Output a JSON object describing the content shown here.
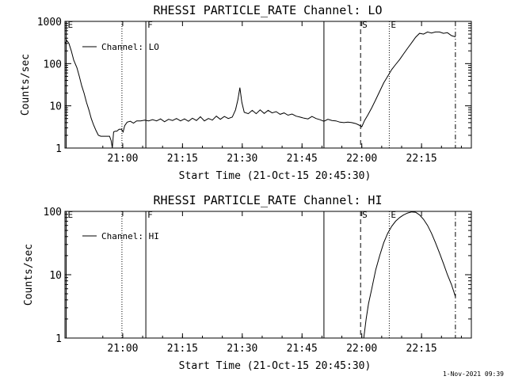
{
  "footer_timestamp": "1-Nov-2021 09:39",
  "chart_data": [
    {
      "type": "line",
      "title": "RHESSI PARTICLE_RATE Channel: LO",
      "xlabel": "Start Time (21-Oct-15 20:45:30)",
      "ylabel": "Counts/sec",
      "yscale": "log",
      "ylim": [
        1,
        1000
      ],
      "xlim_minutes": [
        0,
        102
      ],
      "x_ticks": [
        {
          "t": 14.5,
          "label": "21:00"
        },
        {
          "t": 29.5,
          "label": "21:15"
        },
        {
          "t": 44.5,
          "label": "21:30"
        },
        {
          "t": 59.5,
          "label": "21:45"
        },
        {
          "t": 74.5,
          "label": "22:00"
        },
        {
          "t": 89.5,
          "label": "22:15"
        }
      ],
      "y_ticks": [
        {
          "v": 1,
          "label": "1"
        },
        {
          "v": 10,
          "label": "10"
        },
        {
          "v": 100,
          "label": "100"
        },
        {
          "v": 1000,
          "label": "1000"
        }
      ],
      "legend": {
        "position": "top-left",
        "label": "Channel: LO"
      },
      "markers": [
        {
          "t": 0.3,
          "style": "solid",
          "label": "E"
        },
        {
          "t": 14.3,
          "style": "dotted",
          "label": ""
        },
        {
          "t": 20.3,
          "style": "solid",
          "label": "F"
        },
        {
          "t": 65.0,
          "style": "solid",
          "label": ""
        },
        {
          "t": 74.2,
          "style": "dashed",
          "label": "S"
        },
        {
          "t": 81.4,
          "style": "dotted",
          "label": "E"
        },
        {
          "t": 98.0,
          "style": "dashdot",
          "label": ""
        }
      ],
      "series": [
        {
          "name": "",
          "points": [
            [
              0,
              300
            ],
            [
              0.5,
              350
            ],
            [
              1,
              300
            ],
            [
              1.6,
              200
            ],
            [
              2.2,
              120
            ],
            [
              3,
              80
            ],
            [
              3.6,
              50
            ],
            [
              4.2,
              30
            ],
            [
              4.8,
              20
            ],
            [
              5.4,
              12
            ],
            [
              6,
              8
            ],
            [
              6.6,
              5
            ],
            [
              7.2,
              3.5
            ],
            [
              7.8,
              2.6
            ],
            [
              8.4,
              2
            ],
            [
              9,
              1.9
            ],
            [
              9.6,
              1.9
            ],
            [
              10.2,
              1.9
            ],
            [
              10.8,
              1.9
            ],
            [
              11.2,
              1.9
            ],
            [
              11.6,
              1.5
            ],
            [
              11.9,
              1.0
            ],
            [
              12.2,
              2.4
            ],
            [
              12.6,
              2.5
            ],
            [
              13,
              2.5
            ],
            [
              13.6,
              2.8
            ],
            [
              14.2,
              2.8
            ],
            [
              14.6,
              2.4
            ],
            [
              15,
              3.4
            ],
            [
              15.6,
              4.1
            ],
            [
              16.4,
              4.3
            ],
            [
              17.2,
              3.9
            ],
            [
              18,
              4.4
            ],
            [
              19,
              4.4
            ],
            [
              20,
              4.6
            ],
            [
              21,
              4.4
            ],
            [
              22,
              4.7
            ],
            [
              23,
              4.4
            ],
            [
              24,
              4.9
            ],
            [
              25,
              4.2
            ],
            [
              26,
              4.8
            ],
            [
              27,
              4.5
            ],
            [
              28,
              5.0
            ],
            [
              29,
              4.4
            ],
            [
              30,
              4.9
            ],
            [
              31,
              4.3
            ],
            [
              32,
              5.1
            ],
            [
              33,
              4.5
            ],
            [
              34,
              5.5
            ],
            [
              35,
              4.4
            ],
            [
              36,
              5.0
            ],
            [
              37,
              4.6
            ],
            [
              38,
              5.7
            ],
            [
              39,
              4.8
            ],
            [
              40,
              5.6
            ],
            [
              41,
              5.0
            ],
            [
              42,
              5.4
            ],
            [
              42.8,
              8
            ],
            [
              43.4,
              14
            ],
            [
              43.9,
              27
            ],
            [
              44.4,
              12
            ],
            [
              45,
              7
            ],
            [
              46,
              6.5
            ],
            [
              47,
              7.8
            ],
            [
              48,
              6.5
            ],
            [
              49,
              8
            ],
            [
              50,
              6.6
            ],
            [
              51,
              7.8
            ],
            [
              52,
              6.8
            ],
            [
              53,
              7.3
            ],
            [
              54,
              6.3
            ],
            [
              55,
              6.8
            ],
            [
              56,
              6.0
            ],
            [
              57,
              6.4
            ],
            [
              58,
              5.7
            ],
            [
              59,
              5.4
            ],
            [
              60,
              5.1
            ],
            [
              61,
              4.9
            ],
            [
              62,
              5.6
            ],
            [
              63,
              5.0
            ],
            [
              64,
              4.7
            ],
            [
              65,
              4.3
            ],
            [
              66,
              4.8
            ],
            [
              67,
              4.5
            ],
            [
              68,
              4.4
            ],
            [
              69,
              4.1
            ],
            [
              70,
              4.0
            ],
            [
              71,
              4.1
            ],
            [
              72,
              4.0
            ],
            [
              73,
              3.8
            ],
            [
              73.8,
              3.5
            ],
            [
              74.5,
              3.2
            ],
            [
              75.2,
              4.5
            ],
            [
              76,
              6
            ],
            [
              77,
              9
            ],
            [
              78,
              14
            ],
            [
              79,
              22
            ],
            [
              80,
              35
            ],
            [
              81,
              50
            ],
            [
              82,
              72
            ],
            [
              83,
              95
            ],
            [
              84,
              125
            ],
            [
              85,
              170
            ],
            [
              86,
              230
            ],
            [
              87,
              310
            ],
            [
              88,
              420
            ],
            [
              89,
              520
            ],
            [
              90,
              500
            ],
            [
              91,
              560
            ],
            [
              92,
              530
            ],
            [
              93,
              560
            ],
            [
              94,
              560
            ],
            [
              95,
              520
            ],
            [
              96,
              540
            ],
            [
              97,
              460
            ],
            [
              98,
              430
            ]
          ]
        }
      ]
    },
    {
      "type": "line",
      "title": "RHESSI PARTICLE_RATE Channel: HI",
      "xlabel": "Start Time (21-Oct-15 20:45:30)",
      "ylabel": "Counts/sec",
      "yscale": "log",
      "ylim": [
        1,
        100
      ],
      "xlim_minutes": [
        0,
        102
      ],
      "x_ticks": [
        {
          "t": 14.5,
          "label": "21:00"
        },
        {
          "t": 29.5,
          "label": "21:15"
        },
        {
          "t": 44.5,
          "label": "21:30"
        },
        {
          "t": 59.5,
          "label": "21:45"
        },
        {
          "t": 74.5,
          "label": "22:00"
        },
        {
          "t": 89.5,
          "label": "22:15"
        }
      ],
      "y_ticks": [
        {
          "v": 1,
          "label": "1"
        },
        {
          "v": 10,
          "label": "10"
        },
        {
          "v": 100,
          "label": "100"
        }
      ],
      "legend": {
        "position": "top-left",
        "label": "Channel: HI"
      },
      "markers": [
        {
          "t": 0.3,
          "style": "solid",
          "label": "E"
        },
        {
          "t": 14.3,
          "style": "dotted",
          "label": ""
        },
        {
          "t": 20.3,
          "style": "solid",
          "label": "F"
        },
        {
          "t": 65.0,
          "style": "solid",
          "label": ""
        },
        {
          "t": 74.2,
          "style": "dashed",
          "label": "S"
        },
        {
          "t": 81.4,
          "style": "dotted",
          "label": "E"
        },
        {
          "t": 98.0,
          "style": "dashdot",
          "label": ""
        }
      ],
      "series": [
        {
          "name": "",
          "points": [
            [
              75.0,
              1.0
            ],
            [
              75.6,
              2
            ],
            [
              76.2,
              3.5
            ],
            [
              77,
              6
            ],
            [
              78,
              12
            ],
            [
              79,
              20
            ],
            [
              80,
              32
            ],
            [
              81,
              45
            ],
            [
              82,
              58
            ],
            [
              83,
              70
            ],
            [
              84,
              80
            ],
            [
              85,
              88
            ],
            [
              86,
              94
            ],
            [
              87,
              98
            ],
            [
              88,
              97
            ],
            [
              89,
              88
            ],
            [
              90,
              75
            ],
            [
              91,
              60
            ],
            [
              92,
              45
            ],
            [
              93,
              32
            ],
            [
              94,
              22
            ],
            [
              95,
              15
            ],
            [
              96,
              10
            ],
            [
              97,
              7
            ],
            [
              98,
              4.5
            ]
          ]
        }
      ]
    }
  ]
}
